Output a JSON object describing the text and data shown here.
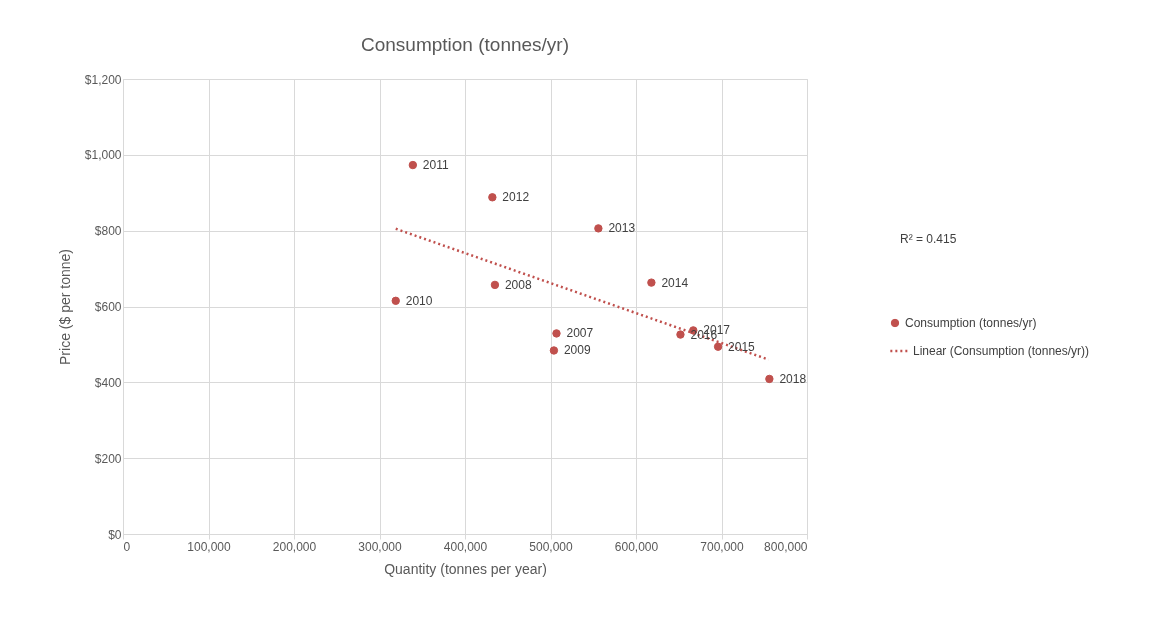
{
  "chart_data": {
    "type": "scatter",
    "title": "Consumption (tonnes/yr)",
    "xlabel": "Quantity (tonnes per year)",
    "ylabel": "Price ($ per tonne)",
    "x": [
      507000,
      435000,
      504000,
      319000,
      339000,
      432000,
      556000,
      618000,
      696000,
      652000,
      667000,
      756000
    ],
    "series": [
      {
        "name": "Consumption (tonnes/yr)",
        "color": "#c0504d",
        "marker": "circle",
        "values": [
          529,
          657,
          484,
          615,
          973,
          888,
          806,
          663,
          494,
          526,
          537,
          409
        ]
      },
      {
        "name": "Linear (Consumption (tonnes/yr))",
        "color": "#c0504d",
        "type": "line",
        "marker": "none",
        "line_style": "dotted",
        "x": [
          319000,
          755000
        ],
        "values": [
          805,
          460
        ]
      }
    ],
    "annotations": [
      "R² = 0.415",
      {
        "text": "2007",
        "x": 507000,
        "y": 529
      },
      {
        "text": "2008",
        "x": 435000,
        "y": 657
      },
      {
        "text": "2009",
        "x": 504000,
        "y": 484
      },
      {
        "text": "2010",
        "x": 319000,
        "y": 615
      },
      {
        "text": "2011",
        "x": 339000,
        "y": 973
      },
      {
        "text": "2012",
        "x": 432000,
        "y": 888
      },
      {
        "text": "2013",
        "x": 556000,
        "y": 806
      },
      {
        "text": "2014",
        "x": 618000,
        "y": 663
      },
      {
        "text": "2015",
        "x": 696000,
        "y": 494
      },
      {
        "text": "2016",
        "x": 652000,
        "y": 526
      },
      {
        "text": "2017",
        "x": 667000,
        "y": 537
      },
      {
        "text": "2018",
        "x": 756000,
        "y": 409
      }
    ],
    "xlim": [
      0,
      800000
    ],
    "xticks": [
      {
        "value": 0,
        "label": "0"
      },
      {
        "value": 100000,
        "label": "100,000"
      },
      {
        "value": 200000,
        "label": "200,000"
      },
      {
        "value": 300000,
        "label": "300,000"
      },
      {
        "value": 400000,
        "label": "400,000"
      },
      {
        "value": 500000,
        "label": "500,000"
      },
      {
        "value": 600000,
        "label": "600,000"
      },
      {
        "value": 700000,
        "label": "700,000"
      },
      {
        "value": 800000,
        "label": "800,000"
      }
    ],
    "ylim": [
      0,
      1200
    ],
    "yticks": [
      {
        "value": 0,
        "label": "$0"
      },
      {
        "value": 200,
        "label": "$200"
      },
      {
        "value": 400,
        "label": "$400"
      },
      {
        "value": 600,
        "label": "$600"
      },
      {
        "value": 800,
        "label": "$800"
      },
      {
        "value": 1000,
        "label": "$1,000"
      },
      {
        "value": 1200,
        "label": "$1,200"
      }
    ],
    "grid": true,
    "legend": "right"
  }
}
